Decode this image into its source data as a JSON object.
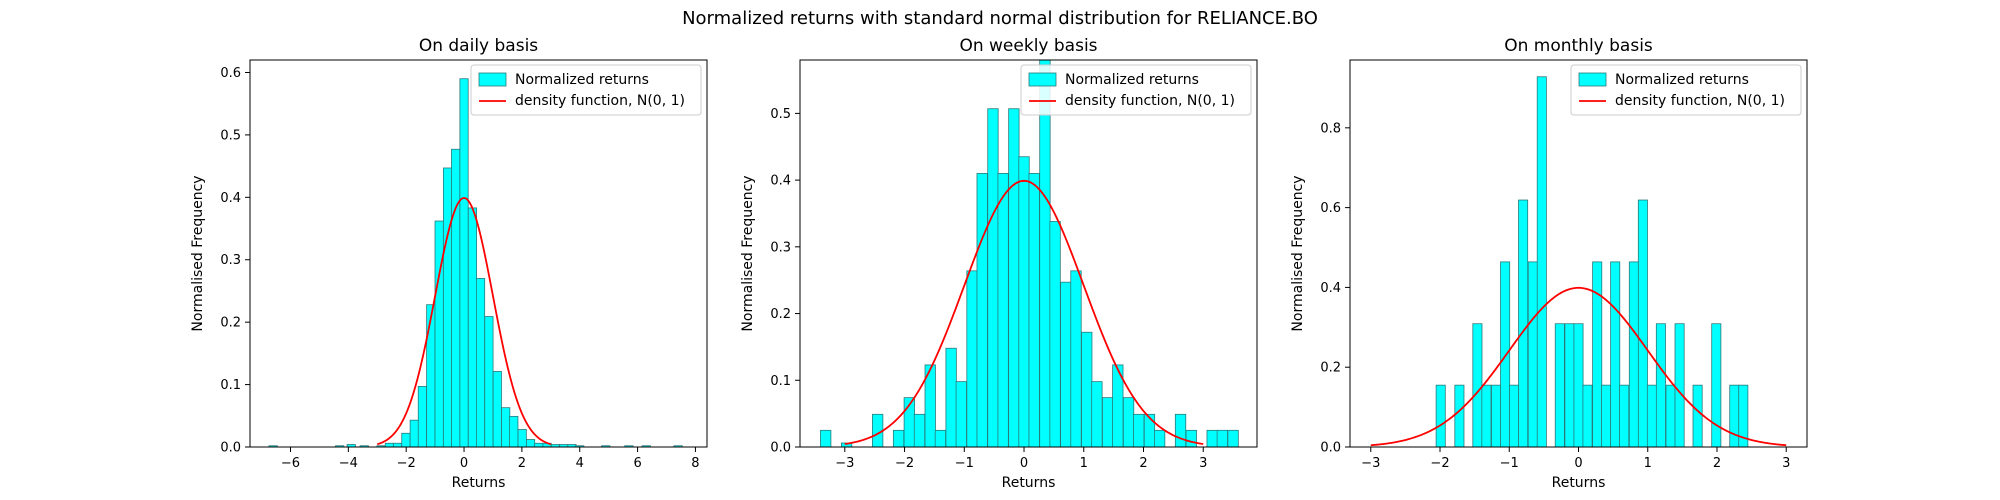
{
  "figure": {
    "suptitle": "Normalized returns with standard normal distribution for RELIANCE.BO"
  },
  "colors": {
    "bar_fill": "#00ffff",
    "bar_edge": "#2a7a7a",
    "curve": "#ff0000",
    "axes": "#000000"
  },
  "chart_data": [
    {
      "type": "bar",
      "title": "On daily basis",
      "xlabel": "Returns",
      "ylabel": "Normalised Frequency",
      "xlim": [
        -7.4,
        8.4
      ],
      "ylim": [
        0,
        0.62
      ],
      "xticks": [
        -6,
        -4,
        -2,
        0,
        2,
        4,
        6,
        8
      ],
      "yticks": [
        0.0,
        0.1,
        0.2,
        0.3,
        0.4,
        0.5,
        0.6
      ],
      "bin_width": 0.2876,
      "bins": [
        {
          "x": -6.6,
          "y": 0.002
        },
        {
          "x": -4.3,
          "y": 0.002
        },
        {
          "x": -3.9,
          "y": 0.004
        },
        {
          "x": -3.45,
          "y": 0.002
        },
        {
          "x": -2.87,
          "y": 0.002
        },
        {
          "x": -2.58,
          "y": 0.006
        },
        {
          "x": -2.3,
          "y": 0.006
        },
        {
          "x": -2.01,
          "y": 0.022
        },
        {
          "x": -1.72,
          "y": 0.043
        },
        {
          "x": -1.44,
          "y": 0.097
        },
        {
          "x": -1.15,
          "y": 0.228
        },
        {
          "x": -0.86,
          "y": 0.362
        },
        {
          "x": -0.57,
          "y": 0.447
        },
        {
          "x": -0.29,
          "y": 0.477
        },
        {
          "x": 0.0,
          "y": 0.59
        },
        {
          "x": 0.29,
          "y": 0.383
        },
        {
          "x": 0.57,
          "y": 0.27
        },
        {
          "x": 0.86,
          "y": 0.209
        },
        {
          "x": 1.15,
          "y": 0.121
        },
        {
          "x": 1.44,
          "y": 0.063
        },
        {
          "x": 1.72,
          "y": 0.049
        },
        {
          "x": 2.01,
          "y": 0.028
        },
        {
          "x": 2.3,
          "y": 0.012
        },
        {
          "x": 2.58,
          "y": 0.006
        },
        {
          "x": 2.87,
          "y": 0.006
        },
        {
          "x": 3.16,
          "y": 0.004
        },
        {
          "x": 3.45,
          "y": 0.004
        },
        {
          "x": 3.73,
          "y": 0.004
        },
        {
          "x": 4.0,
          "y": 0.002
        },
        {
          "x": 4.9,
          "y": 0.002
        },
        {
          "x": 5.7,
          "y": 0.002
        },
        {
          "x": 6.3,
          "y": 0.002
        },
        {
          "x": 7.4,
          "y": 0.002
        }
      ],
      "curve": {
        "mu": 0,
        "sigma": 1,
        "x_from": -3,
        "x_to": 3
      },
      "legend": {
        "position": "top-right",
        "entries": [
          "Normalized returns",
          "density function, N(0, 1)"
        ]
      }
    },
    {
      "type": "bar",
      "title": "On weekly basis",
      "xlabel": "Returns",
      "ylabel": "Normalised Frequency",
      "xlim": [
        -3.75,
        3.9
      ],
      "ylim": [
        0,
        0.58
      ],
      "xticks": [
        -3,
        -2,
        -1,
        0,
        1,
        2,
        3
      ],
      "yticks": [
        0.0,
        0.1,
        0.2,
        0.3,
        0.4,
        0.5
      ],
      "bin_width": 0.1748,
      "bins": [
        {
          "x": -3.32,
          "y": 0.025
        },
        {
          "x": -3.15,
          "y": 0.0
        },
        {
          "x": -2.97,
          "y": 0.006
        },
        {
          "x": -2.8,
          "y": 0.0
        },
        {
          "x": -2.62,
          "y": 0.0
        },
        {
          "x": -2.45,
          "y": 0.049
        },
        {
          "x": -2.27,
          "y": 0.0
        },
        {
          "x": -2.1,
          "y": 0.025
        },
        {
          "x": -1.92,
          "y": 0.074
        },
        {
          "x": -1.75,
          "y": 0.049
        },
        {
          "x": -1.57,
          "y": 0.123
        },
        {
          "x": -1.4,
          "y": 0.025
        },
        {
          "x": -1.22,
          "y": 0.148
        },
        {
          "x": -1.05,
          "y": 0.098
        },
        {
          "x": -0.87,
          "y": 0.264
        },
        {
          "x": -0.7,
          "y": 0.41
        },
        {
          "x": -0.52,
          "y": 0.507
        },
        {
          "x": -0.35,
          "y": 0.41
        },
        {
          "x": -0.17,
          "y": 0.507
        },
        {
          "x": 0.0,
          "y": 0.435
        },
        {
          "x": 0.17,
          "y": 0.41
        },
        {
          "x": 0.35,
          "y": 0.58
        },
        {
          "x": 0.52,
          "y": 0.338
        },
        {
          "x": 0.7,
          "y": 0.247
        },
        {
          "x": 0.87,
          "y": 0.264
        },
        {
          "x": 1.05,
          "y": 0.172
        },
        {
          "x": 1.22,
          "y": 0.098
        },
        {
          "x": 1.4,
          "y": 0.074
        },
        {
          "x": 1.57,
          "y": 0.123
        },
        {
          "x": 1.75,
          "y": 0.074
        },
        {
          "x": 1.92,
          "y": 0.049
        },
        {
          "x": 2.1,
          "y": 0.049
        },
        {
          "x": 2.27,
          "y": 0.025
        },
        {
          "x": 2.45,
          "y": 0.0
        },
        {
          "x": 2.62,
          "y": 0.049
        },
        {
          "x": 2.8,
          "y": 0.025
        },
        {
          "x": 2.97,
          "y": 0.0
        },
        {
          "x": 3.15,
          "y": 0.025
        },
        {
          "x": 3.32,
          "y": 0.025
        },
        {
          "x": 3.5,
          "y": 0.025
        }
      ],
      "curve": {
        "mu": 0,
        "sigma": 1,
        "x_from": -3,
        "x_to": 3
      },
      "legend": {
        "position": "top-right",
        "entries": [
          "Normalized returns",
          "density function, N(0, 1)"
        ]
      }
    },
    {
      "type": "bar",
      "title": "On monthly basis",
      "xlabel": "Returns",
      "ylabel": "Normalised Frequency",
      "xlim": [
        -3.3,
        3.3
      ],
      "ylim": [
        0,
        0.97
      ],
      "xticks": [
        -3,
        -2,
        -1,
        0,
        1,
        2,
        3
      ],
      "yticks": [
        0.0,
        0.2,
        0.4,
        0.6,
        0.8
      ],
      "bin_width": 0.1325,
      "bins": [
        {
          "x": -1.99,
          "y": 0.155
        },
        {
          "x": -1.72,
          "y": 0.155
        },
        {
          "x": -1.46,
          "y": 0.309
        },
        {
          "x": -1.33,
          "y": 0.155
        },
        {
          "x": -1.19,
          "y": 0.155
        },
        {
          "x": -1.06,
          "y": 0.464
        },
        {
          "x": -0.93,
          "y": 0.155
        },
        {
          "x": -0.8,
          "y": 0.619
        },
        {
          "x": -0.66,
          "y": 0.464
        },
        {
          "x": -0.53,
          "y": 0.928
        },
        {
          "x": -0.4,
          "y": 0.0
        },
        {
          "x": -0.27,
          "y": 0.309
        },
        {
          "x": -0.13,
          "y": 0.309
        },
        {
          "x": 0.0,
          "y": 0.309
        },
        {
          "x": 0.13,
          "y": 0.155
        },
        {
          "x": 0.27,
          "y": 0.464
        },
        {
          "x": 0.4,
          "y": 0.155
        },
        {
          "x": 0.53,
          "y": 0.464
        },
        {
          "x": 0.66,
          "y": 0.155
        },
        {
          "x": 0.8,
          "y": 0.464
        },
        {
          "x": 0.93,
          "y": 0.619
        },
        {
          "x": 1.06,
          "y": 0.155
        },
        {
          "x": 1.19,
          "y": 0.309
        },
        {
          "x": 1.33,
          "y": 0.155
        },
        {
          "x": 1.46,
          "y": 0.309
        },
        {
          "x": 1.72,
          "y": 0.155
        },
        {
          "x": 1.99,
          "y": 0.309
        },
        {
          "x": 2.25,
          "y": 0.155
        },
        {
          "x": 2.38,
          "y": 0.155
        }
      ],
      "curve": {
        "mu": 0,
        "sigma": 1,
        "x_from": -3,
        "x_to": 3
      },
      "legend": {
        "position": "top-right",
        "entries": [
          "Normalized returns",
          "density function, N(0, 1)"
        ]
      }
    }
  ]
}
